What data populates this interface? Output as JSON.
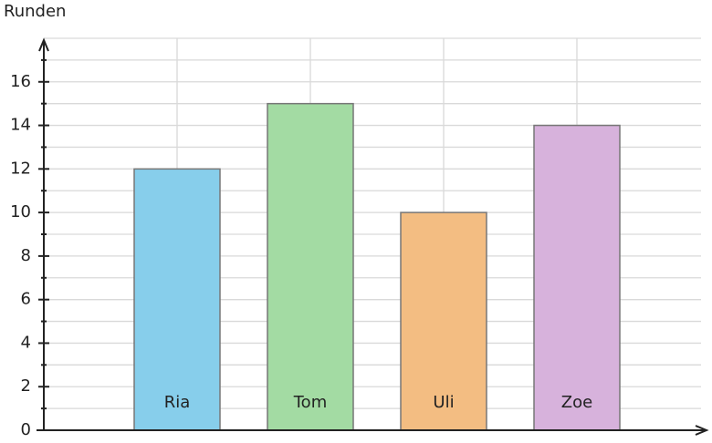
{
  "chart_data": {
    "type": "bar",
    "y_label": "Runden",
    "categories": [
      "Ria",
      "Tom",
      "Uli",
      "Zoe"
    ],
    "values": [
      12,
      15,
      10,
      14
    ],
    "colors": [
      "#87ceeb",
      "#a3dba3",
      "#f3bd82",
      "#d7b2dc"
    ],
    "ylim": [
      0,
      18
    ],
    "yticks": [
      0,
      2,
      4,
      6,
      8,
      10,
      12,
      14,
      16
    ],
    "minor_yticks": [
      1,
      3,
      5,
      7,
      9,
      11,
      13,
      15,
      17
    ],
    "grid": true
  }
}
